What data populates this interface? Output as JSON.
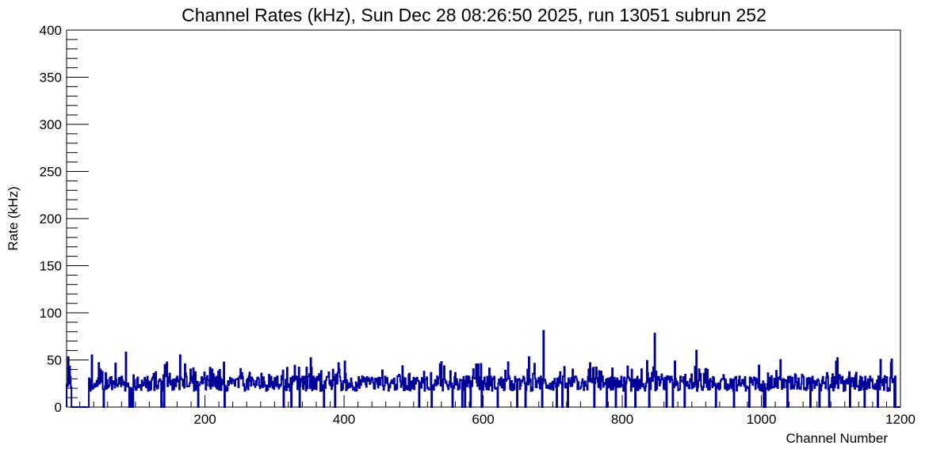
{
  "chart_data": {
    "type": "line",
    "title": "Channel Rates (kHz), Sun Dec 28 08:26:50 2025, run 13051 subrun 252",
    "xlabel": "Channel Number",
    "ylabel": "Rate (kHz)",
    "xlim": [
      1,
      1200
    ],
    "ylim": [
      0,
      400
    ],
    "x_ticks": [
      200,
      400,
      600,
      800,
      1000,
      1200
    ],
    "y_ticks": [
      0,
      50,
      100,
      150,
      200,
      250,
      300,
      350,
      400
    ],
    "grid": false,
    "legend": "none",
    "line_color": "#000099",
    "baseline_rate": 25,
    "spikes": [
      {
        "channel": 3,
        "rate": 53
      },
      {
        "channel": 37,
        "rate": 55
      },
      {
        "channel": 86,
        "rate": 58
      },
      {
        "channel": 164,
        "rate": 55
      },
      {
        "channel": 352,
        "rate": 52
      },
      {
        "channel": 666,
        "rate": 53
      },
      {
        "channel": 687,
        "rate": 81
      },
      {
        "channel": 847,
        "rate": 78
      },
      {
        "channel": 907,
        "rate": 60
      },
      {
        "channel": 1028,
        "rate": 50
      },
      {
        "channel": 1110,
        "rate": 52
      },
      {
        "channel": 1187,
        "rate": 47
      }
    ],
    "zero_ranges": [
      [
        8,
        32
      ],
      [
        1194,
        1200
      ]
    ],
    "dropout_channels": [
      54,
      86,
      91,
      94,
      96,
      137,
      141,
      190,
      228,
      313,
      324,
      336,
      371,
      387,
      508,
      526,
      556,
      570,
      574,
      582,
      598,
      621,
      649,
      661,
      685,
      706,
      714,
      722,
      760,
      778,
      791,
      805,
      819,
      839,
      864,
      873,
      890,
      935,
      961,
      983,
      1004,
      1006,
      1038,
      1071,
      1084,
      1098,
      1128,
      1149,
      1168,
      1192
    ]
  }
}
